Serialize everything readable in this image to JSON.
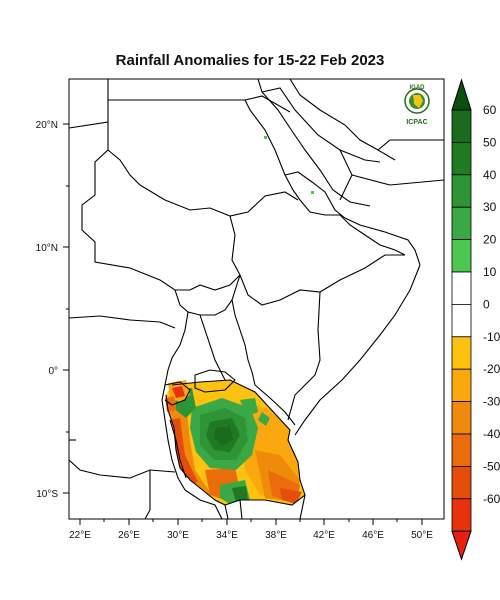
{
  "title": "Rainfall Anomalies for 15-22 Feb 2023",
  "logo": {
    "top_text": "IGAD",
    "bottom_text": "ICPAC"
  },
  "map": {
    "lon_ticks": [
      "22°E",
      "26°E",
      "30°E",
      "34°E",
      "38°E",
      "42°E",
      "46°E",
      "50°E"
    ],
    "lat_ticks": [
      "20°N",
      "10°N",
      "0°",
      "10°S"
    ]
  },
  "colorbar": {
    "labels": [
      "60",
      "50",
      "40",
      "30",
      "20",
      "10",
      "0",
      "-10",
      "-20",
      "-30",
      "-40",
      "-50",
      "-60"
    ],
    "colors": {
      "top_arrow": "#0b4f10",
      "50_60": "#1a6b1d",
      "40_50": "#1f7a22",
      "30_40": "#2f9436",
      "20_30": "#39a845",
      "10_20": "#4cc74f",
      "neutral": "#ffffff",
      "m10_0": "#fdc20f",
      "m20_m10": "#f9a90e",
      "m30_m20": "#f08a0b",
      "m40_m30": "#ea6c0a",
      "m50_m40": "#e54e0a",
      "m60_m50": "#e8310d",
      "bottom_arrow": "#e81e0e"
    }
  }
}
